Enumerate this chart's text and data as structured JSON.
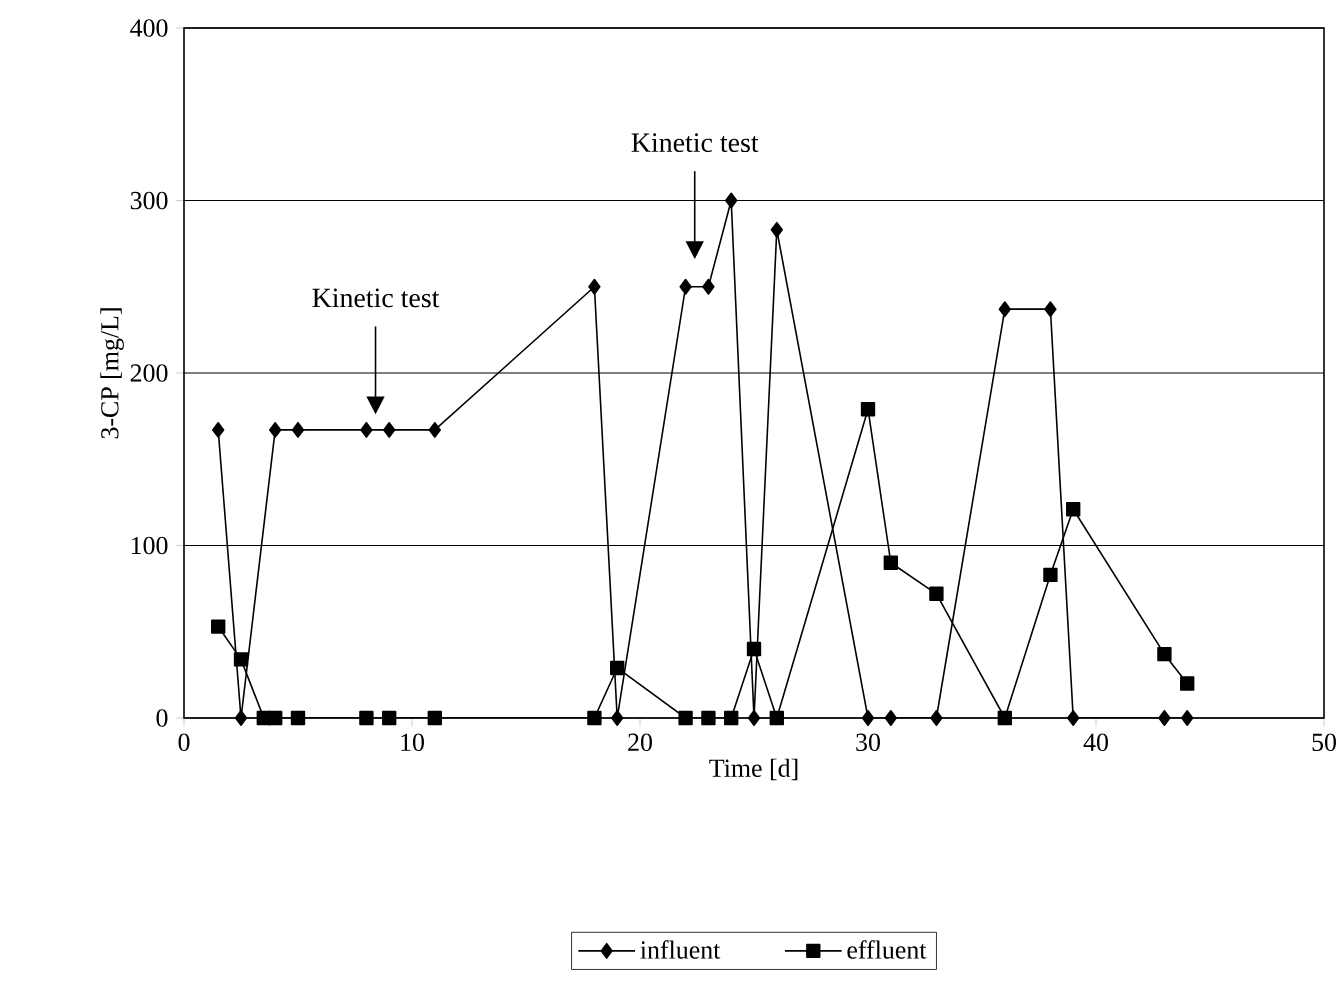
{
  "chart_data": {
    "type": "line",
    "xlabel": "Time [d]",
    "ylabel": "3-CP [mg/L]",
    "xlim": [
      0,
      50
    ],
    "ylim": [
      0,
      400
    ],
    "xticks": [
      0,
      10,
      20,
      30,
      40,
      50
    ],
    "yticks": [
      0,
      100,
      200,
      300,
      400
    ],
    "grid": "y",
    "legend": "bottom",
    "line_style": "solid",
    "series": [
      {
        "name": "influent",
        "color": "#000000",
        "marker": "diamond",
        "x": [
          1.5,
          2.5,
          4,
          5,
          8,
          9,
          11,
          18,
          19,
          22,
          23,
          24,
          25,
          26,
          30,
          31,
          33,
          36,
          38,
          39,
          43,
          44
        ],
        "values": [
          167,
          0,
          167,
          167,
          167,
          167,
          167,
          250,
          0,
          250,
          250,
          300,
          0,
          283,
          0,
          0,
          0,
          237,
          237,
          0,
          0,
          0
        ]
      },
      {
        "name": "effluent",
        "color": "#000000",
        "marker": "square",
        "x": [
          1.5,
          2.5,
          3.5,
          4,
          5,
          8,
          9,
          11,
          18,
          19,
          22,
          23,
          24,
          25,
          26,
          30,
          31,
          33,
          36,
          38,
          39,
          43,
          44
        ],
        "values": [
          53,
          34,
          0,
          0,
          0,
          0,
          0,
          0,
          0,
          29,
          0,
          0,
          0,
          40,
          0,
          179,
          90,
          72,
          0,
          83,
          121,
          37,
          20
        ]
      }
    ],
    "annotations": [
      "Kinetic test",
      "Kinetic test"
    ]
  }
}
